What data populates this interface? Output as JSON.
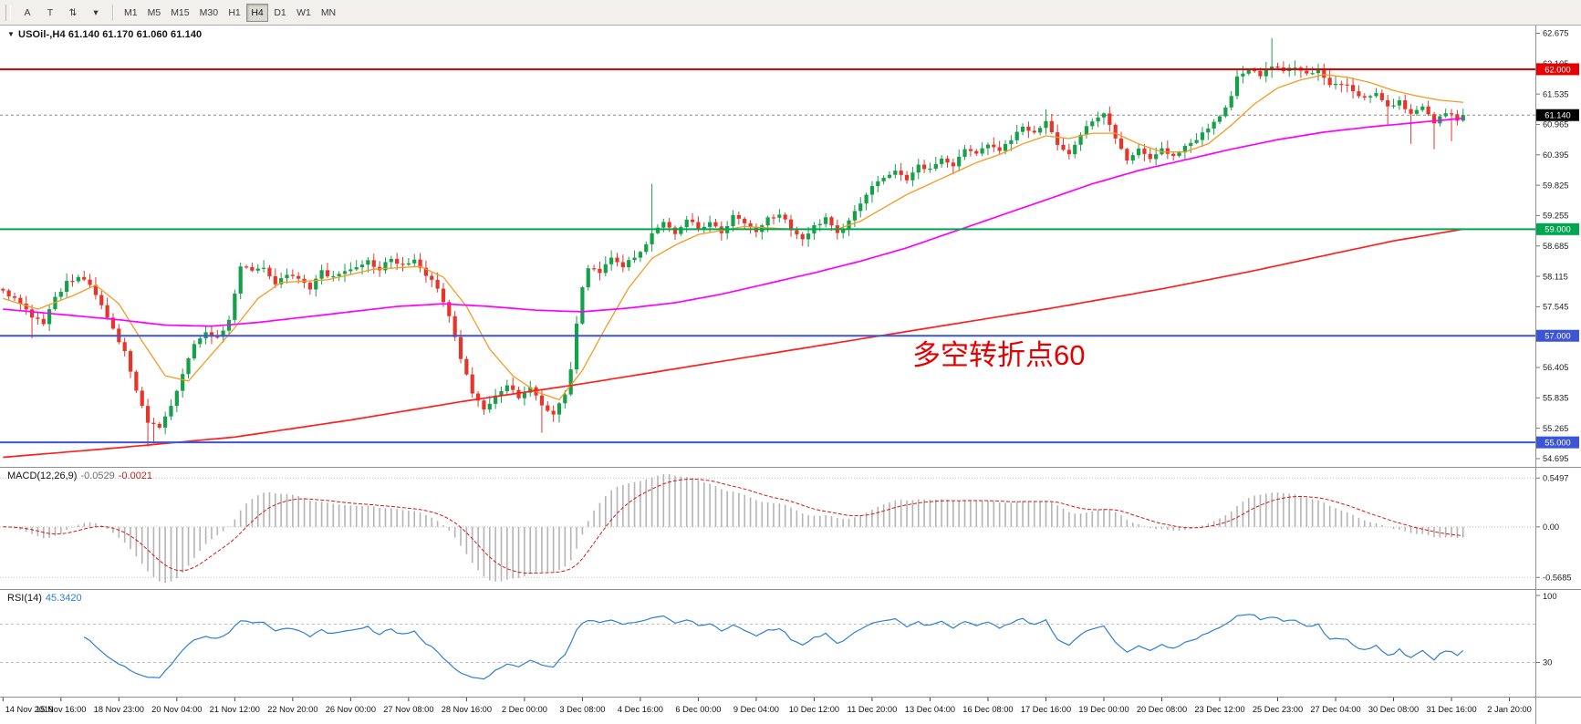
{
  "toolbar": {
    "tools": [
      {
        "name": "text-tool",
        "label": "A"
      },
      {
        "name": "label-tool",
        "label": "T"
      },
      {
        "name": "arrows-tool",
        "label": "⇅"
      },
      {
        "name": "more-tools",
        "label": "▾"
      }
    ],
    "timeframes": [
      "M1",
      "M5",
      "M15",
      "M30",
      "H1",
      "H4",
      "D1",
      "W1",
      "MN"
    ],
    "active_timeframe": "H4"
  },
  "chart": {
    "title_line": "USOil-,H4 61.140 61.170 61.060 61.140",
    "symbol": "USOil-",
    "timeframe": "H4",
    "ohlc": {
      "open": "61.140",
      "high": "61.170",
      "low": "61.060",
      "close": "61.140"
    },
    "annotation": {
      "text": "多空转折点60",
      "color": "#e60000"
    },
    "price_axis_labels": [
      "62.675",
      "62.105",
      "61.535",
      "60.965",
      "60.395",
      "59.825",
      "59.255",
      "58.685",
      "58.115",
      "57.545",
      "56.975",
      "56.405",
      "55.835",
      "55.265",
      "54.695"
    ],
    "hlines": [
      {
        "price": 62.0,
        "label": "62.000",
        "color": "#e60000"
      },
      {
        "price": 59.0,
        "label": "59.000",
        "color": "#00a650"
      },
      {
        "price": 57.0,
        "label": "57.000",
        "color": "#3c55d6"
      },
      {
        "price": 55.0,
        "label": "55.000",
        "color": "#3c55d6"
      }
    ],
    "current_price": {
      "value": 61.14,
      "label": "61.140",
      "badge_color": "#000000"
    },
    "colors": {
      "up": "#16a049",
      "down": "#e6352b",
      "ma_fast": "#f59a23",
      "ma_mid": "#ff00ff",
      "ma_slow": "#ff1f1f"
    },
    "chart_data": {
      "type": "candlestick",
      "bars_total": 265,
      "bars_data": 253,
      "price_axis_top": 62.675,
      "price_axis_step": 0.57,
      "close_anchors": [
        [
          0,
          57.85
        ],
        [
          3,
          57.6
        ],
        [
          5,
          57.35
        ],
        [
          7,
          57.25
        ],
        [
          9,
          57.7
        ],
        [
          11,
          58.0
        ],
        [
          13,
          58.1
        ],
        [
          15,
          57.95
        ],
        [
          17,
          57.55
        ],
        [
          19,
          57.1
        ],
        [
          21,
          56.7
        ],
        [
          23,
          56.0
        ],
        [
          25,
          55.35
        ],
        [
          27,
          55.3
        ],
        [
          29,
          55.7
        ],
        [
          31,
          56.3
        ],
        [
          33,
          56.85
        ],
        [
          35,
          57.05
        ],
        [
          37,
          56.95
        ],
        [
          39,
          57.3
        ],
        [
          41,
          58.3
        ],
        [
          43,
          58.25
        ],
        [
          45,
          58.3
        ],
        [
          47,
          58.0
        ],
        [
          49,
          58.15
        ],
        [
          51,
          58.05
        ],
        [
          53,
          57.9
        ],
        [
          55,
          58.2
        ],
        [
          57,
          58.1
        ],
        [
          59,
          58.2
        ],
        [
          61,
          58.3
        ],
        [
          63,
          58.4
        ],
        [
          65,
          58.25
        ],
        [
          67,
          58.45
        ],
        [
          69,
          58.3
        ],
        [
          71,
          58.4
        ],
        [
          73,
          58.15
        ],
        [
          75,
          57.9
        ],
        [
          77,
          57.4
        ],
        [
          79,
          56.6
        ],
        [
          81,
          55.95
        ],
        [
          83,
          55.6
        ],
        [
          85,
          55.85
        ],
        [
          87,
          56.1
        ],
        [
          89,
          55.8
        ],
        [
          91,
          56.0
        ],
        [
          93,
          55.7
        ],
        [
          95,
          55.55
        ],
        [
          97,
          55.9
        ],
        [
          98,
          56.4
        ],
        [
          99,
          57.2
        ],
        [
          100,
          57.9
        ],
        [
          101,
          58.3
        ],
        [
          103,
          58.2
        ],
        [
          105,
          58.45
        ],
        [
          107,
          58.3
        ],
        [
          109,
          58.5
        ],
        [
          111,
          58.7
        ],
        [
          112,
          58.95
        ],
        [
          114,
          59.1
        ],
        [
          116,
          58.9
        ],
        [
          118,
          59.2
        ],
        [
          120,
          59.0
        ],
        [
          122,
          59.15
        ],
        [
          124,
          58.9
        ],
        [
          126,
          59.25
        ],
        [
          128,
          59.1
        ],
        [
          130,
          58.95
        ],
        [
          132,
          59.2
        ],
        [
          134,
          59.3
        ],
        [
          136,
          59.0
        ],
        [
          138,
          58.8
        ],
        [
          140,
          59.05
        ],
        [
          142,
          59.2
        ],
        [
          144,
          58.9
        ],
        [
          146,
          59.15
        ],
        [
          148,
          59.5
        ],
        [
          150,
          59.8
        ],
        [
          152,
          59.95
        ],
        [
          154,
          60.1
        ],
        [
          156,
          59.9
        ],
        [
          158,
          60.2
        ],
        [
          160,
          60.1
        ],
        [
          162,
          60.35
        ],
        [
          164,
          60.2
        ],
        [
          166,
          60.5
        ],
        [
          168,
          60.4
        ],
        [
          170,
          60.6
        ],
        [
          172,
          60.45
        ],
        [
          174,
          60.7
        ],
        [
          176,
          60.9
        ],
        [
          178,
          60.8
        ],
        [
          180,
          61.0
        ],
        [
          182,
          60.6
        ],
        [
          184,
          60.4
        ],
        [
          186,
          60.8
        ],
        [
          188,
          61.05
        ],
        [
          190,
          61.15
        ],
        [
          192,
          60.7
        ],
        [
          194,
          60.3
        ],
        [
          196,
          60.5
        ],
        [
          198,
          60.35
        ],
        [
          200,
          60.5
        ],
        [
          202,
          60.35
        ],
        [
          204,
          60.55
        ],
        [
          206,
          60.7
        ],
        [
          208,
          60.9
        ],
        [
          210,
          61.1
        ],
        [
          212,
          61.5
        ],
        [
          213,
          61.85
        ],
        [
          215,
          62.0
        ],
        [
          217,
          61.9
        ],
        [
          219,
          62.05
        ],
        [
          221,
          61.95
        ],
        [
          223,
          62.05
        ],
        [
          225,
          61.9
        ],
        [
          227,
          62.0
        ],
        [
          228,
          61.85
        ],
        [
          229,
          61.7
        ],
        [
          231,
          61.75
        ],
        [
          233,
          61.6
        ],
        [
          235,
          61.45
        ],
        [
          237,
          61.55
        ],
        [
          239,
          61.3
        ],
        [
          241,
          61.4
        ],
        [
          243,
          61.15
        ],
        [
          245,
          61.3
        ],
        [
          247,
          61.0
        ],
        [
          249,
          61.2
        ],
        [
          251,
          61.05
        ],
        [
          252,
          61.14
        ]
      ],
      "wick_overrides": {
        "5": [
          null,
          56.95
        ],
        "25": [
          null,
          54.92
        ],
        "26": [
          null,
          54.98
        ],
        "93": [
          null,
          55.18
        ],
        "112": [
          59.85,
          null
        ],
        "180": [
          61.25,
          null
        ],
        "219": [
          62.58,
          null
        ],
        "239": [
          null,
          60.95
        ],
        "243": [
          null,
          60.6
        ],
        "247": [
          null,
          60.5
        ],
        "250": [
          null,
          60.65
        ]
      },
      "ma_fast_anchors": [
        [
          0,
          57.7
        ],
        [
          6,
          57.5
        ],
        [
          12,
          57.75
        ],
        [
          16,
          57.95
        ],
        [
          20,
          57.6
        ],
        [
          24,
          56.9
        ],
        [
          28,
          56.25
        ],
        [
          32,
          56.15
        ],
        [
          36,
          56.65
        ],
        [
          40,
          57.15
        ],
        [
          44,
          57.7
        ],
        [
          48,
          58.0
        ],
        [
          56,
          58.05
        ],
        [
          64,
          58.25
        ],
        [
          72,
          58.3
        ],
        [
          76,
          58.1
        ],
        [
          80,
          57.55
        ],
        [
          84,
          56.75
        ],
        [
          88,
          56.25
        ],
        [
          92,
          55.95
        ],
        [
          96,
          55.8
        ],
        [
          100,
          56.35
        ],
        [
          104,
          57.15
        ],
        [
          108,
          57.9
        ],
        [
          112,
          58.45
        ],
        [
          116,
          58.7
        ],
        [
          120,
          58.9
        ],
        [
          128,
          59.05
        ],
        [
          136,
          59.0
        ],
        [
          144,
          59.0
        ],
        [
          148,
          59.15
        ],
        [
          152,
          59.4
        ],
        [
          156,
          59.65
        ],
        [
          160,
          59.85
        ],
        [
          164,
          60.05
        ],
        [
          168,
          60.25
        ],
        [
          172,
          60.4
        ],
        [
          176,
          60.6
        ],
        [
          180,
          60.75
        ],
        [
          184,
          60.7
        ],
        [
          188,
          60.8
        ],
        [
          192,
          60.8
        ],
        [
          196,
          60.6
        ],
        [
          200,
          60.45
        ],
        [
          204,
          60.45
        ],
        [
          208,
          60.6
        ],
        [
          212,
          60.95
        ],
        [
          216,
          61.35
        ],
        [
          220,
          61.65
        ],
        [
          224,
          61.8
        ],
        [
          228,
          61.9
        ],
        [
          232,
          61.85
        ],
        [
          236,
          61.75
        ],
        [
          240,
          61.6
        ],
        [
          244,
          61.5
        ],
        [
          248,
          61.42
        ],
        [
          252,
          61.38
        ]
      ],
      "ma_mid_anchors": [
        [
          0,
          57.5
        ],
        [
          10,
          57.4
        ],
        [
          20,
          57.3
        ],
        [
          28,
          57.2
        ],
        [
          36,
          57.18
        ],
        [
          44,
          57.25
        ],
        [
          52,
          57.35
        ],
        [
          60,
          57.45
        ],
        [
          68,
          57.55
        ],
        [
          76,
          57.6
        ],
        [
          84,
          57.55
        ],
        [
          92,
          57.48
        ],
        [
          100,
          57.45
        ],
        [
          108,
          57.52
        ],
        [
          116,
          57.62
        ],
        [
          124,
          57.78
        ],
        [
          132,
          57.98
        ],
        [
          140,
          58.18
        ],
        [
          148,
          58.4
        ],
        [
          156,
          58.65
        ],
        [
          164,
          58.95
        ],
        [
          172,
          59.25
        ],
        [
          180,
          59.55
        ],
        [
          188,
          59.85
        ],
        [
          196,
          60.1
        ],
        [
          204,
          60.3
        ],
        [
          212,
          60.5
        ],
        [
          220,
          60.68
        ],
        [
          228,
          60.82
        ],
        [
          236,
          60.92
        ],
        [
          244,
          61.0
        ],
        [
          252,
          61.08
        ]
      ],
      "ma_slow_anchors": [
        [
          0,
          54.72
        ],
        [
          20,
          54.9
        ],
        [
          40,
          55.1
        ],
        [
          60,
          55.42
        ],
        [
          80,
          55.78
        ],
        [
          100,
          56.1
        ],
        [
          120,
          56.45
        ],
        [
          140,
          56.8
        ],
        [
          160,
          57.15
        ],
        [
          180,
          57.5
        ],
        [
          200,
          57.88
        ],
        [
          215,
          58.2
        ],
        [
          230,
          58.55
        ],
        [
          240,
          58.78
        ],
        [
          252,
          59.0
        ]
      ]
    }
  },
  "macd": {
    "name": "MACD(12,26,9)",
    "value_main": "-0.0529",
    "value_signal": "-0.0021",
    "axis_labels": [
      "0.5497",
      "0.00",
      "-0.5685"
    ],
    "histogram_color": "#b4b4b4",
    "signal_color": "#d21a1a"
  },
  "rsi": {
    "name": "RSI(14)",
    "value": "45.3420",
    "axis_labels": [
      "100",
      "30"
    ],
    "levels": [
      70,
      30
    ],
    "line_color": "#2d7fd4"
  },
  "time_axis": {
    "label_every_bars": 10,
    "labels": [
      "14 Nov 2019",
      "15 Nov 16:00",
      "18 Nov 23:00",
      "20 Nov 04:00",
      "21 Nov 12:00",
      "22 Nov 20:00",
      "26 Nov 00:00",
      "27 Nov 08:00",
      "28 Nov 16:00",
      "2 Dec 00:00",
      "3 Dec 08:00",
      "4 Dec 16:00",
      "6 Dec 00:00",
      "9 Dec 04:00",
      "10 Dec 12:00",
      "11 Dec 20:00",
      "13 Dec 04:00",
      "16 Dec 08:00",
      "17 Dec 16:00",
      "19 Dec 00:00",
      "20 Dec 08:00",
      "23 Dec 12:00",
      "25 Dec 23:00",
      "27 Dec 04:00",
      "30 Dec 08:00",
      "31 Dec 16:00",
      "2 Jan 20:00"
    ]
  }
}
